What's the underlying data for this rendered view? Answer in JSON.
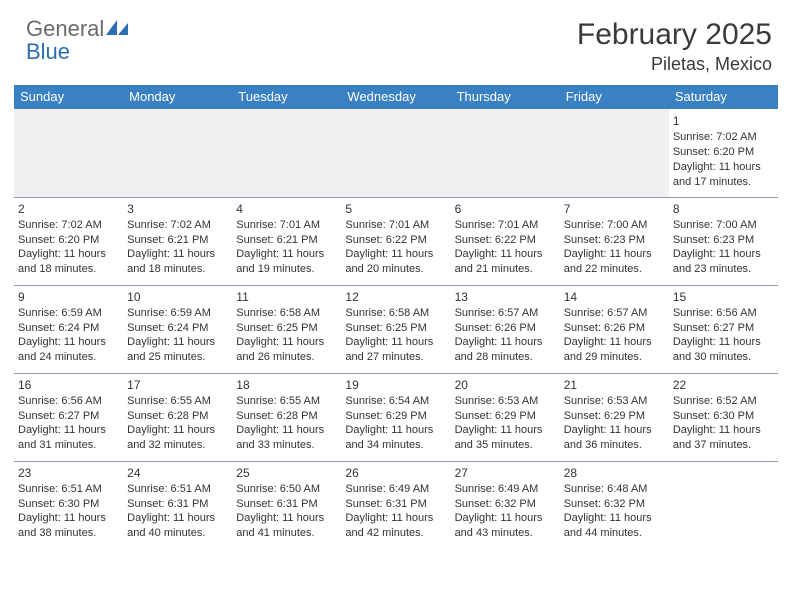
{
  "brand": {
    "part1": "General",
    "part2": "Blue"
  },
  "title": "February 2025",
  "location": "Piletas, Mexico",
  "colors": {
    "header_bg": "#3a81c4",
    "header_text": "#ffffff",
    "divider": "#8a9aa8",
    "text": "#333333",
    "brand_gray": "#6b6b6b",
    "brand_blue": "#2c6fb0"
  },
  "day_headers": [
    "Sunday",
    "Monday",
    "Tuesday",
    "Wednesday",
    "Thursday",
    "Friday",
    "Saturday"
  ],
  "weeks": [
    [
      null,
      null,
      null,
      null,
      null,
      null,
      {
        "n": "1",
        "sr": "Sunrise: 7:02 AM",
        "ss": "Sunset: 6:20 PM",
        "d1": "Daylight: 11 hours",
        "d2": "and 17 minutes."
      }
    ],
    [
      {
        "n": "2",
        "sr": "Sunrise: 7:02 AM",
        "ss": "Sunset: 6:20 PM",
        "d1": "Daylight: 11 hours",
        "d2": "and 18 minutes."
      },
      {
        "n": "3",
        "sr": "Sunrise: 7:02 AM",
        "ss": "Sunset: 6:21 PM",
        "d1": "Daylight: 11 hours",
        "d2": "and 18 minutes."
      },
      {
        "n": "4",
        "sr": "Sunrise: 7:01 AM",
        "ss": "Sunset: 6:21 PM",
        "d1": "Daylight: 11 hours",
        "d2": "and 19 minutes."
      },
      {
        "n": "5",
        "sr": "Sunrise: 7:01 AM",
        "ss": "Sunset: 6:22 PM",
        "d1": "Daylight: 11 hours",
        "d2": "and 20 minutes."
      },
      {
        "n": "6",
        "sr": "Sunrise: 7:01 AM",
        "ss": "Sunset: 6:22 PM",
        "d1": "Daylight: 11 hours",
        "d2": "and 21 minutes."
      },
      {
        "n": "7",
        "sr": "Sunrise: 7:00 AM",
        "ss": "Sunset: 6:23 PM",
        "d1": "Daylight: 11 hours",
        "d2": "and 22 minutes."
      },
      {
        "n": "8",
        "sr": "Sunrise: 7:00 AM",
        "ss": "Sunset: 6:23 PM",
        "d1": "Daylight: 11 hours",
        "d2": "and 23 minutes."
      }
    ],
    [
      {
        "n": "9",
        "sr": "Sunrise: 6:59 AM",
        "ss": "Sunset: 6:24 PM",
        "d1": "Daylight: 11 hours",
        "d2": "and 24 minutes."
      },
      {
        "n": "10",
        "sr": "Sunrise: 6:59 AM",
        "ss": "Sunset: 6:24 PM",
        "d1": "Daylight: 11 hours",
        "d2": "and 25 minutes."
      },
      {
        "n": "11",
        "sr": "Sunrise: 6:58 AM",
        "ss": "Sunset: 6:25 PM",
        "d1": "Daylight: 11 hours",
        "d2": "and 26 minutes."
      },
      {
        "n": "12",
        "sr": "Sunrise: 6:58 AM",
        "ss": "Sunset: 6:25 PM",
        "d1": "Daylight: 11 hours",
        "d2": "and 27 minutes."
      },
      {
        "n": "13",
        "sr": "Sunrise: 6:57 AM",
        "ss": "Sunset: 6:26 PM",
        "d1": "Daylight: 11 hours",
        "d2": "and 28 minutes."
      },
      {
        "n": "14",
        "sr": "Sunrise: 6:57 AM",
        "ss": "Sunset: 6:26 PM",
        "d1": "Daylight: 11 hours",
        "d2": "and 29 minutes."
      },
      {
        "n": "15",
        "sr": "Sunrise: 6:56 AM",
        "ss": "Sunset: 6:27 PM",
        "d1": "Daylight: 11 hours",
        "d2": "and 30 minutes."
      }
    ],
    [
      {
        "n": "16",
        "sr": "Sunrise: 6:56 AM",
        "ss": "Sunset: 6:27 PM",
        "d1": "Daylight: 11 hours",
        "d2": "and 31 minutes."
      },
      {
        "n": "17",
        "sr": "Sunrise: 6:55 AM",
        "ss": "Sunset: 6:28 PM",
        "d1": "Daylight: 11 hours",
        "d2": "and 32 minutes."
      },
      {
        "n": "18",
        "sr": "Sunrise: 6:55 AM",
        "ss": "Sunset: 6:28 PM",
        "d1": "Daylight: 11 hours",
        "d2": "and 33 minutes."
      },
      {
        "n": "19",
        "sr": "Sunrise: 6:54 AM",
        "ss": "Sunset: 6:29 PM",
        "d1": "Daylight: 11 hours",
        "d2": "and 34 minutes."
      },
      {
        "n": "20",
        "sr": "Sunrise: 6:53 AM",
        "ss": "Sunset: 6:29 PM",
        "d1": "Daylight: 11 hours",
        "d2": "and 35 minutes."
      },
      {
        "n": "21",
        "sr": "Sunrise: 6:53 AM",
        "ss": "Sunset: 6:29 PM",
        "d1": "Daylight: 11 hours",
        "d2": "and 36 minutes."
      },
      {
        "n": "22",
        "sr": "Sunrise: 6:52 AM",
        "ss": "Sunset: 6:30 PM",
        "d1": "Daylight: 11 hours",
        "d2": "and 37 minutes."
      }
    ],
    [
      {
        "n": "23",
        "sr": "Sunrise: 6:51 AM",
        "ss": "Sunset: 6:30 PM",
        "d1": "Daylight: 11 hours",
        "d2": "and 38 minutes."
      },
      {
        "n": "24",
        "sr": "Sunrise: 6:51 AM",
        "ss": "Sunset: 6:31 PM",
        "d1": "Daylight: 11 hours",
        "d2": "and 40 minutes."
      },
      {
        "n": "25",
        "sr": "Sunrise: 6:50 AM",
        "ss": "Sunset: 6:31 PM",
        "d1": "Daylight: 11 hours",
        "d2": "and 41 minutes."
      },
      {
        "n": "26",
        "sr": "Sunrise: 6:49 AM",
        "ss": "Sunset: 6:31 PM",
        "d1": "Daylight: 11 hours",
        "d2": "and 42 minutes."
      },
      {
        "n": "27",
        "sr": "Sunrise: 6:49 AM",
        "ss": "Sunset: 6:32 PM",
        "d1": "Daylight: 11 hours",
        "d2": "and 43 minutes."
      },
      {
        "n": "28",
        "sr": "Sunrise: 6:48 AM",
        "ss": "Sunset: 6:32 PM",
        "d1": "Daylight: 11 hours",
        "d2": "and 44 minutes."
      },
      null
    ]
  ]
}
